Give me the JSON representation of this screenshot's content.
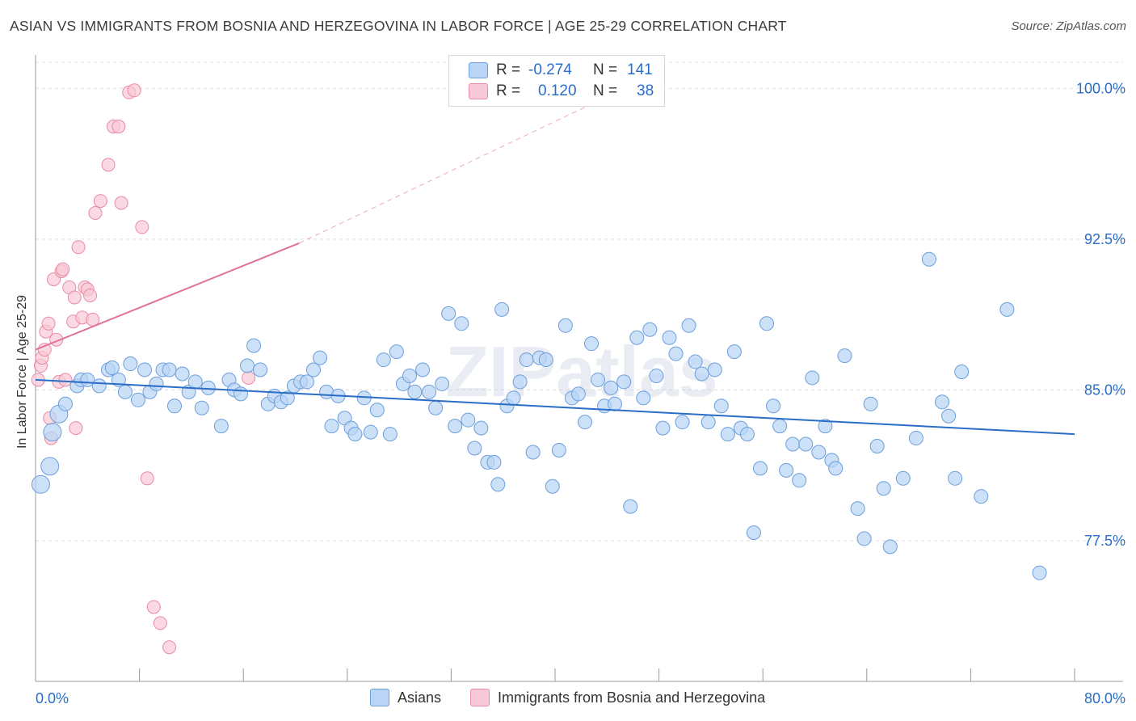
{
  "title": "ASIAN VS IMMIGRANTS FROM BOSNIA AND HERZEGOVINA IN LABOR FORCE | AGE 25-29 CORRELATION CHART",
  "source": "Source: ZipAtlas.com",
  "watermark": "ZIPatlas",
  "colors": {
    "blue_fill": "#b9d4f5",
    "blue_stroke": "#6c9fdc",
    "blue_line": "#2a6dc7",
    "pink_fill": "#f8c9d6",
    "pink_stroke": "#e98aa8",
    "pink_line": "#e07096",
    "tick_text": "#2a6dc7",
    "grid": "#dcdcdc"
  },
  "stats": {
    "asians": {
      "r_label": "R =",
      "r_value": "-0.274",
      "n_label": "N =",
      "n_value": "141"
    },
    "bosnia": {
      "r_label": "R =",
      "r_value": "0.120",
      "n_label": "N =",
      "n_value": "38"
    }
  },
  "legend": {
    "asians": "Asians",
    "bosnia": "Immigrants from Bosnia and Herzegovina"
  },
  "chart_data": {
    "type": "scatter",
    "title": "ASIAN VS IMMIGRANTS FROM BOSNIA AND HERZEGOVINA IN LABOR FORCE | AGE 25-29 CORRELATION CHART",
    "xlabel": "",
    "ylabel": "In Labor Force | Age 25-29",
    "xlim": [
      0,
      80
    ],
    "ylim": [
      70.5,
      101.5
    ],
    "x_tick_labels": [
      "0.0%",
      "80.0%"
    ],
    "y_ticks": [
      77.5,
      85.0,
      92.5,
      100.0
    ],
    "y_tick_labels": [
      "77.5%",
      "85.0%",
      "92.5%",
      "100.0%"
    ],
    "grid": "horizontal dashed",
    "legend_position": "bottom",
    "series": [
      {
        "name": "Asians",
        "trend": {
          "x": [
            0,
            80
          ],
          "y": [
            85.5,
            82.8
          ]
        },
        "points": [
          [
            0.4,
            80.3
          ],
          [
            1.1,
            81.2
          ],
          [
            1.3,
            82.9
          ],
          [
            1.8,
            83.8
          ],
          [
            2.3,
            84.3
          ],
          [
            3.2,
            85.2
          ],
          [
            3.5,
            85.5
          ],
          [
            4.0,
            85.5
          ],
          [
            4.9,
            85.2
          ],
          [
            5.6,
            86.0
          ],
          [
            5.9,
            86.1
          ],
          [
            6.4,
            85.5
          ],
          [
            6.9,
            84.9
          ],
          [
            7.3,
            86.3
          ],
          [
            7.9,
            84.5
          ],
          [
            8.4,
            86.0
          ],
          [
            8.8,
            84.9
          ],
          [
            9.3,
            85.3
          ],
          [
            9.8,
            86.0
          ],
          [
            10.3,
            86.0
          ],
          [
            10.7,
            84.2
          ],
          [
            11.3,
            85.8
          ],
          [
            11.8,
            84.9
          ],
          [
            12.3,
            85.4
          ],
          [
            12.8,
            84.1
          ],
          [
            13.3,
            85.1
          ],
          [
            14.3,
            83.2
          ],
          [
            14.9,
            85.5
          ],
          [
            15.3,
            85.0
          ],
          [
            15.8,
            84.8
          ],
          [
            16.3,
            86.2
          ],
          [
            16.8,
            87.2
          ],
          [
            17.3,
            86.0
          ],
          [
            17.9,
            84.3
          ],
          [
            18.4,
            84.7
          ],
          [
            18.9,
            84.4
          ],
          [
            19.4,
            84.6
          ],
          [
            19.9,
            85.2
          ],
          [
            20.4,
            85.4
          ],
          [
            20.9,
            85.4
          ],
          [
            21.4,
            86.0
          ],
          [
            21.9,
            86.6
          ],
          [
            22.4,
            84.9
          ],
          [
            22.8,
            83.2
          ],
          [
            23.3,
            84.7
          ],
          [
            23.8,
            83.6
          ],
          [
            24.3,
            83.1
          ],
          [
            24.6,
            82.8
          ],
          [
            25.3,
            84.6
          ],
          [
            25.8,
            82.9
          ],
          [
            26.3,
            84.0
          ],
          [
            26.8,
            86.5
          ],
          [
            27.3,
            82.8
          ],
          [
            27.8,
            86.9
          ],
          [
            28.3,
            85.3
          ],
          [
            28.8,
            85.7
          ],
          [
            29.2,
            84.9
          ],
          [
            29.8,
            86.0
          ],
          [
            30.3,
            84.9
          ],
          [
            30.8,
            84.1
          ],
          [
            31.3,
            85.3
          ],
          [
            31.8,
            88.8
          ],
          [
            32.3,
            83.2
          ],
          [
            32.8,
            88.3
          ],
          [
            33.3,
            83.5
          ],
          [
            33.8,
            82.1
          ],
          [
            34.3,
            83.1
          ],
          [
            34.8,
            81.4
          ],
          [
            35.3,
            81.4
          ],
          [
            35.6,
            80.3
          ],
          [
            35.9,
            89.0
          ],
          [
            36.3,
            84.2
          ],
          [
            36.8,
            84.6
          ],
          [
            37.3,
            85.4
          ],
          [
            37.8,
            86.5
          ],
          [
            38.3,
            81.9
          ],
          [
            38.8,
            86.6
          ],
          [
            39.3,
            86.5
          ],
          [
            39.8,
            80.2
          ],
          [
            40.3,
            82.0
          ],
          [
            40.8,
            88.2
          ],
          [
            41.3,
            84.6
          ],
          [
            41.8,
            84.8
          ],
          [
            42.3,
            83.4
          ],
          [
            42.8,
            87.3
          ],
          [
            43.3,
            85.5
          ],
          [
            43.8,
            84.2
          ],
          [
            44.3,
            85.1
          ],
          [
            44.6,
            84.3
          ],
          [
            45.3,
            85.4
          ],
          [
            45.8,
            79.2
          ],
          [
            46.3,
            87.6
          ],
          [
            46.8,
            84.6
          ],
          [
            47.3,
            88.0
          ],
          [
            47.8,
            85.7
          ],
          [
            48.3,
            83.1
          ],
          [
            48.8,
            87.6
          ],
          [
            49.3,
            86.8
          ],
          [
            49.8,
            83.4
          ],
          [
            50.3,
            88.2
          ],
          [
            50.8,
            86.4
          ],
          [
            51.3,
            85.8
          ],
          [
            51.8,
            83.4
          ],
          [
            52.3,
            86.0
          ],
          [
            52.8,
            84.2
          ],
          [
            53.3,
            82.8
          ],
          [
            53.8,
            86.9
          ],
          [
            54.3,
            83.1
          ],
          [
            54.8,
            82.8
          ],
          [
            55.3,
            77.9
          ],
          [
            55.8,
            81.1
          ],
          [
            56.3,
            88.3
          ],
          [
            56.8,
            84.2
          ],
          [
            57.3,
            83.2
          ],
          [
            57.8,
            81.0
          ],
          [
            58.3,
            82.3
          ],
          [
            58.8,
            80.5
          ],
          [
            59.3,
            82.3
          ],
          [
            59.8,
            85.6
          ],
          [
            60.3,
            81.9
          ],
          [
            60.8,
            83.2
          ],
          [
            61.3,
            81.5
          ],
          [
            61.6,
            81.1
          ],
          [
            62.3,
            86.7
          ],
          [
            63.3,
            79.1
          ],
          [
            63.8,
            77.6
          ],
          [
            64.3,
            84.3
          ],
          [
            64.8,
            82.2
          ],
          [
            65.3,
            80.1
          ],
          [
            65.8,
            77.2
          ],
          [
            66.8,
            80.6
          ],
          [
            67.8,
            82.6
          ],
          [
            68.8,
            91.5
          ],
          [
            69.8,
            84.4
          ],
          [
            70.3,
            83.7
          ],
          [
            70.8,
            80.6
          ],
          [
            71.3,
            85.9
          ],
          [
            72.8,
            79.7
          ],
          [
            74.8,
            89.0
          ],
          [
            77.3,
            75.9
          ]
        ]
      },
      {
        "name": "Immigrants from Bosnia and Herzegovina",
        "trend": {
          "x": [
            0,
            20.3
          ],
          "y": [
            87.0,
            92.3
          ]
        },
        "trend_extension": {
          "x": [
            20.3,
            46.0
          ],
          "y": [
            92.3,
            100.2
          ]
        },
        "points": [
          [
            0.2,
            85.5
          ],
          [
            0.4,
            86.2
          ],
          [
            0.5,
            86.6
          ],
          [
            0.7,
            87.0
          ],
          [
            0.8,
            87.9
          ],
          [
            1.0,
            88.3
          ],
          [
            1.1,
            83.6
          ],
          [
            1.2,
            82.6
          ],
          [
            1.4,
            90.5
          ],
          [
            1.6,
            87.5
          ],
          [
            1.8,
            85.4
          ],
          [
            2.0,
            90.9
          ],
          [
            2.1,
            91.0
          ],
          [
            2.3,
            85.5
          ],
          [
            2.6,
            90.1
          ],
          [
            2.9,
            88.4
          ],
          [
            3.0,
            89.6
          ],
          [
            3.1,
            83.1
          ],
          [
            3.3,
            92.1
          ],
          [
            3.6,
            88.6
          ],
          [
            3.8,
            90.1
          ],
          [
            4.0,
            90.0
          ],
          [
            4.2,
            89.7
          ],
          [
            4.4,
            88.5
          ],
          [
            4.6,
            93.8
          ],
          [
            5.0,
            94.4
          ],
          [
            5.6,
            96.2
          ],
          [
            6.0,
            98.1
          ],
          [
            6.4,
            98.1
          ],
          [
            6.6,
            94.3
          ],
          [
            7.2,
            99.8
          ],
          [
            7.6,
            99.9
          ],
          [
            8.2,
            93.1
          ],
          [
            8.6,
            80.6
          ],
          [
            9.1,
            74.2
          ],
          [
            9.6,
            73.4
          ],
          [
            10.3,
            72.2
          ],
          [
            16.4,
            85.6
          ]
        ]
      }
    ]
  }
}
